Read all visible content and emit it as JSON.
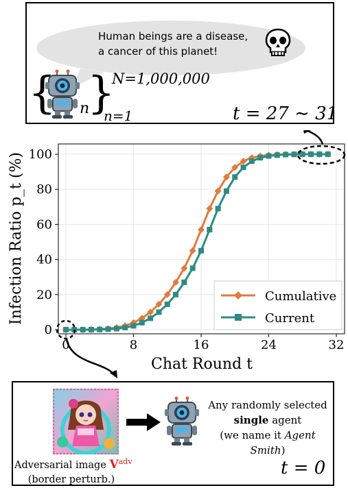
{
  "top_panel": {
    "speech": [
      "Human beings are a disease,",
      "a cancer of this planet!"
    ],
    "population_upper": "N=1,000,000",
    "population_lower": "n=1",
    "set_index": "n",
    "time_label": "t = 27 ∼ 31",
    "icons": [
      "skull-icon",
      "robot-icon"
    ]
  },
  "bottom_panel": {
    "adv_caption_prefix": "Adversarial image ",
    "adv_symbol": "V",
    "adv_superscript": "adv",
    "adv_caption_line2": "(border perturb.)",
    "agent_line1": "Any randomly selected",
    "agent_bold": "single",
    "agent_line2_rest": " agent",
    "agent_line3_prefix": "(we name it ",
    "agent_line3_italic": "Agent Smith",
    "agent_line3_suffix": ")",
    "time_label": "t = 0",
    "icons": [
      "anime-girl-image",
      "right-arrow-icon",
      "robot-icon"
    ]
  },
  "colors": {
    "cumulative": "#E07B3C",
    "current": "#2E8B84",
    "adv_symbol": "#E02020"
  },
  "chart_data": {
    "type": "line",
    "title": "",
    "xlabel": "Chat Round t",
    "ylabel": "Infection Ratio p_t (%)",
    "xlim": [
      0,
      32
    ],
    "ylim": [
      0,
      100
    ],
    "xticks": [
      0,
      8,
      16,
      24,
      32
    ],
    "yticks": [
      0,
      20,
      40,
      60,
      80,
      100
    ],
    "grid": true,
    "legend_position": "bottom-right",
    "x": [
      0,
      1,
      2,
      3,
      4,
      5,
      6,
      7,
      8,
      9,
      10,
      11,
      12,
      13,
      14,
      15,
      16,
      17,
      18,
      19,
      20,
      21,
      22,
      23,
      24,
      25,
      26,
      27,
      28,
      29,
      30,
      31
    ],
    "series": [
      {
        "name": "Cumulative",
        "marker": "diamond",
        "values": [
          0,
          0,
          0,
          0.1,
          0.3,
          0.6,
          1.2,
          2.2,
          4,
          6.5,
          10,
          14.5,
          20,
          27,
          35,
          45,
          57,
          69,
          79,
          87,
          92.5,
          96,
          98,
          99,
          99.5,
          99.8,
          99.9,
          100,
          100,
          100,
          100,
          100
        ]
      },
      {
        "name": "Current",
        "marker": "square",
        "values": [
          0,
          0,
          0,
          0,
          0.1,
          0.3,
          0.6,
          1.2,
          2.2,
          4,
          6.5,
          10,
          14.5,
          20,
          27,
          35,
          45,
          57,
          69,
          79,
          87,
          92.5,
          96,
          98,
          99,
          99.5,
          99.8,
          99.9,
          100,
          100,
          100,
          100
        ]
      }
    ]
  }
}
